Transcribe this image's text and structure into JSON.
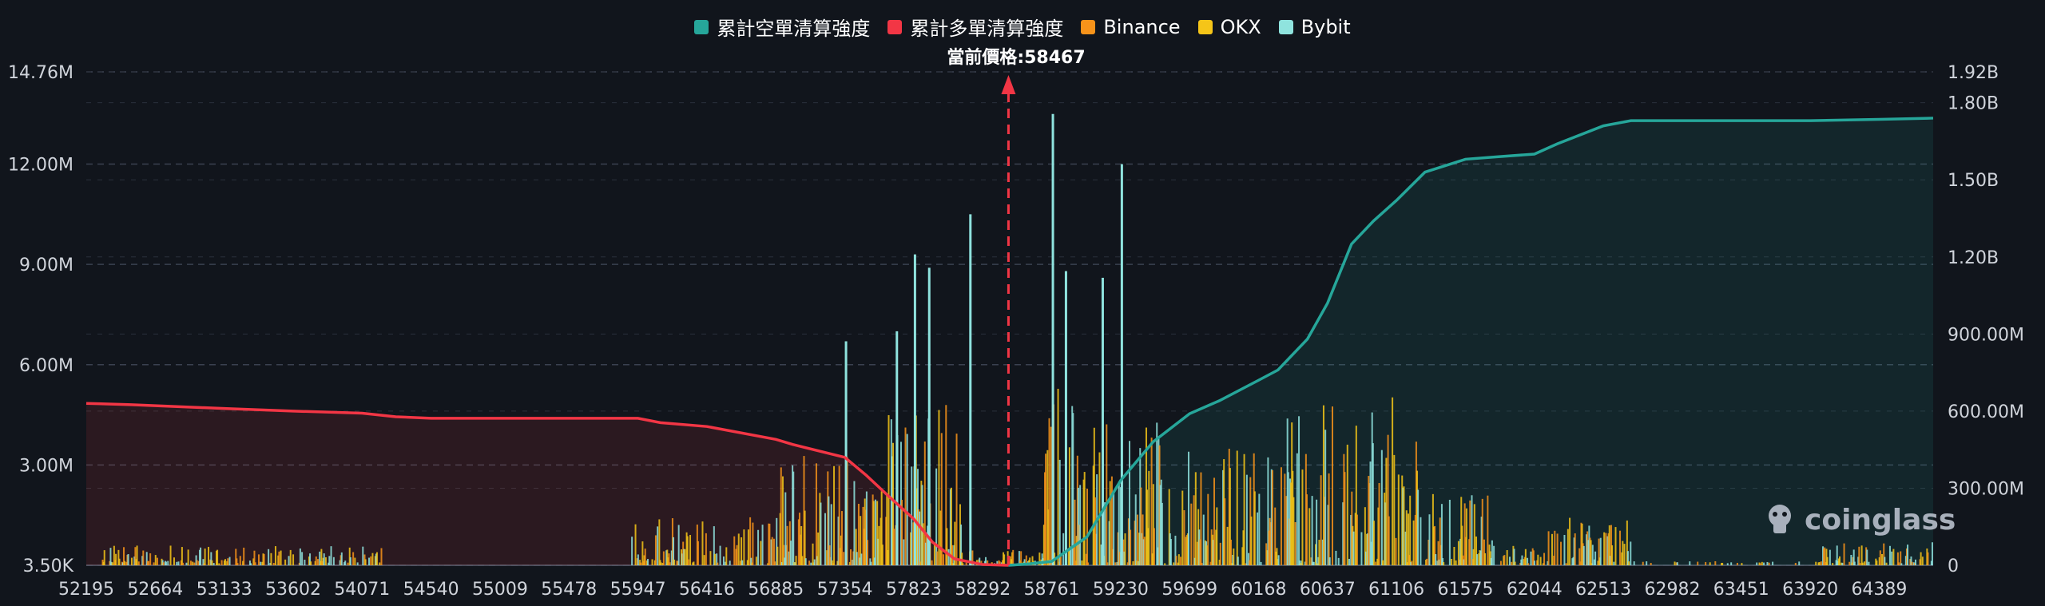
{
  "chart_data": {
    "type": "bar",
    "current_price_label": "當前價格:58467",
    "current_price": 58467,
    "watermark": "coinglass",
    "legend": [
      {
        "name": "累計空單清算強度",
        "color": "#26a69a"
      },
      {
        "name": "累計多單清算強度",
        "color": "#f23645"
      },
      {
        "name": "Binance",
        "color": "#f7931a"
      },
      {
        "name": "OKX",
        "color": "#f5c518"
      },
      {
        "name": "Bybit",
        "color": "#8fe3de"
      }
    ],
    "x_tick_labels": [
      "52195",
      "52664",
      "53133",
      "53602",
      "54071",
      "54540",
      "55009",
      "55478",
      "55947",
      "56416",
      "56885",
      "57354",
      "57823",
      "58292",
      "58761",
      "59230",
      "59699",
      "60168",
      "60637",
      "61106",
      "61575",
      "62044",
      "62513",
      "62982",
      "63451",
      "63920",
      "64389"
    ],
    "xlim": [
      52195,
      64756
    ],
    "y_left_tick_labels": [
      "3.50K",
      "3.00M",
      "6.00M",
      "9.00M",
      "12.00M",
      "14.76M"
    ],
    "y_left_ticks": [
      0,
      3000000,
      6000000,
      9000000,
      12000000,
      14760000
    ],
    "ylim_left": [
      0,
      14760000
    ],
    "y_right_tick_labels": [
      "0",
      "300.00M",
      "600.00M",
      "900.00M",
      "1.20B",
      "1.50B",
      "1.80B",
      "1.92B"
    ],
    "y_right_ticks": [
      0,
      300000000,
      600000000,
      900000000,
      1200000000,
      1500000000,
      1800000000,
      1920000000
    ],
    "ylim_right": [
      0,
      1920000000
    ],
    "cumulative_long": {
      "name": "累計多單清算強度",
      "x": [
        52195,
        52500,
        53133,
        53602,
        54071,
        54300,
        54540,
        55009,
        55478,
        55947,
        56100,
        56416,
        56885,
        57000,
        57354,
        57500,
        57650,
        57823,
        57950,
        58100,
        58292,
        58467
      ],
      "y": [
        630000000,
        625000000,
        610000000,
        600000000,
        592000000,
        578000000,
        572000000,
        572000000,
        572000000,
        572000000,
        555000000,
        540000000,
        490000000,
        470000000,
        420000000,
        350000000,
        270000000,
        180000000,
        90000000,
        25000000,
        3000000,
        0
      ]
    },
    "cumulative_short": {
      "name": "累計空單清算強度",
      "x": [
        58467,
        58600,
        58761,
        59000,
        59230,
        59450,
        59699,
        59900,
        60168,
        60300,
        60500,
        60637,
        60800,
        60950,
        61106,
        61300,
        61575,
        61800,
        62044,
        62200,
        62513,
        62700,
        62982,
        63451,
        63920,
        64389,
        64756
      ],
      "y": [
        0,
        5000000,
        15000000,
        110000000,
        330000000,
        480000000,
        590000000,
        640000000,
        720000000,
        760000000,
        880000000,
        1020000000,
        1250000000,
        1340000000,
        1420000000,
        1530000000,
        1580000000,
        1590000000,
        1600000000,
        1640000000,
        1710000000,
        1730000000,
        1730000000,
        1730000000,
        1730000000,
        1735000000,
        1740000000
      ]
    },
    "peak_bars": {
      "name": "Bybit",
      "x": [
        57354,
        57823,
        57920,
        58200,
        58761,
        58850,
        59230,
        59100,
        57700
      ],
      "y": [
        6700000,
        9300000,
        8900000,
        10500000,
        13500000,
        8800000,
        12000000,
        8600000,
        7000000
      ]
    },
    "grid": true
  }
}
